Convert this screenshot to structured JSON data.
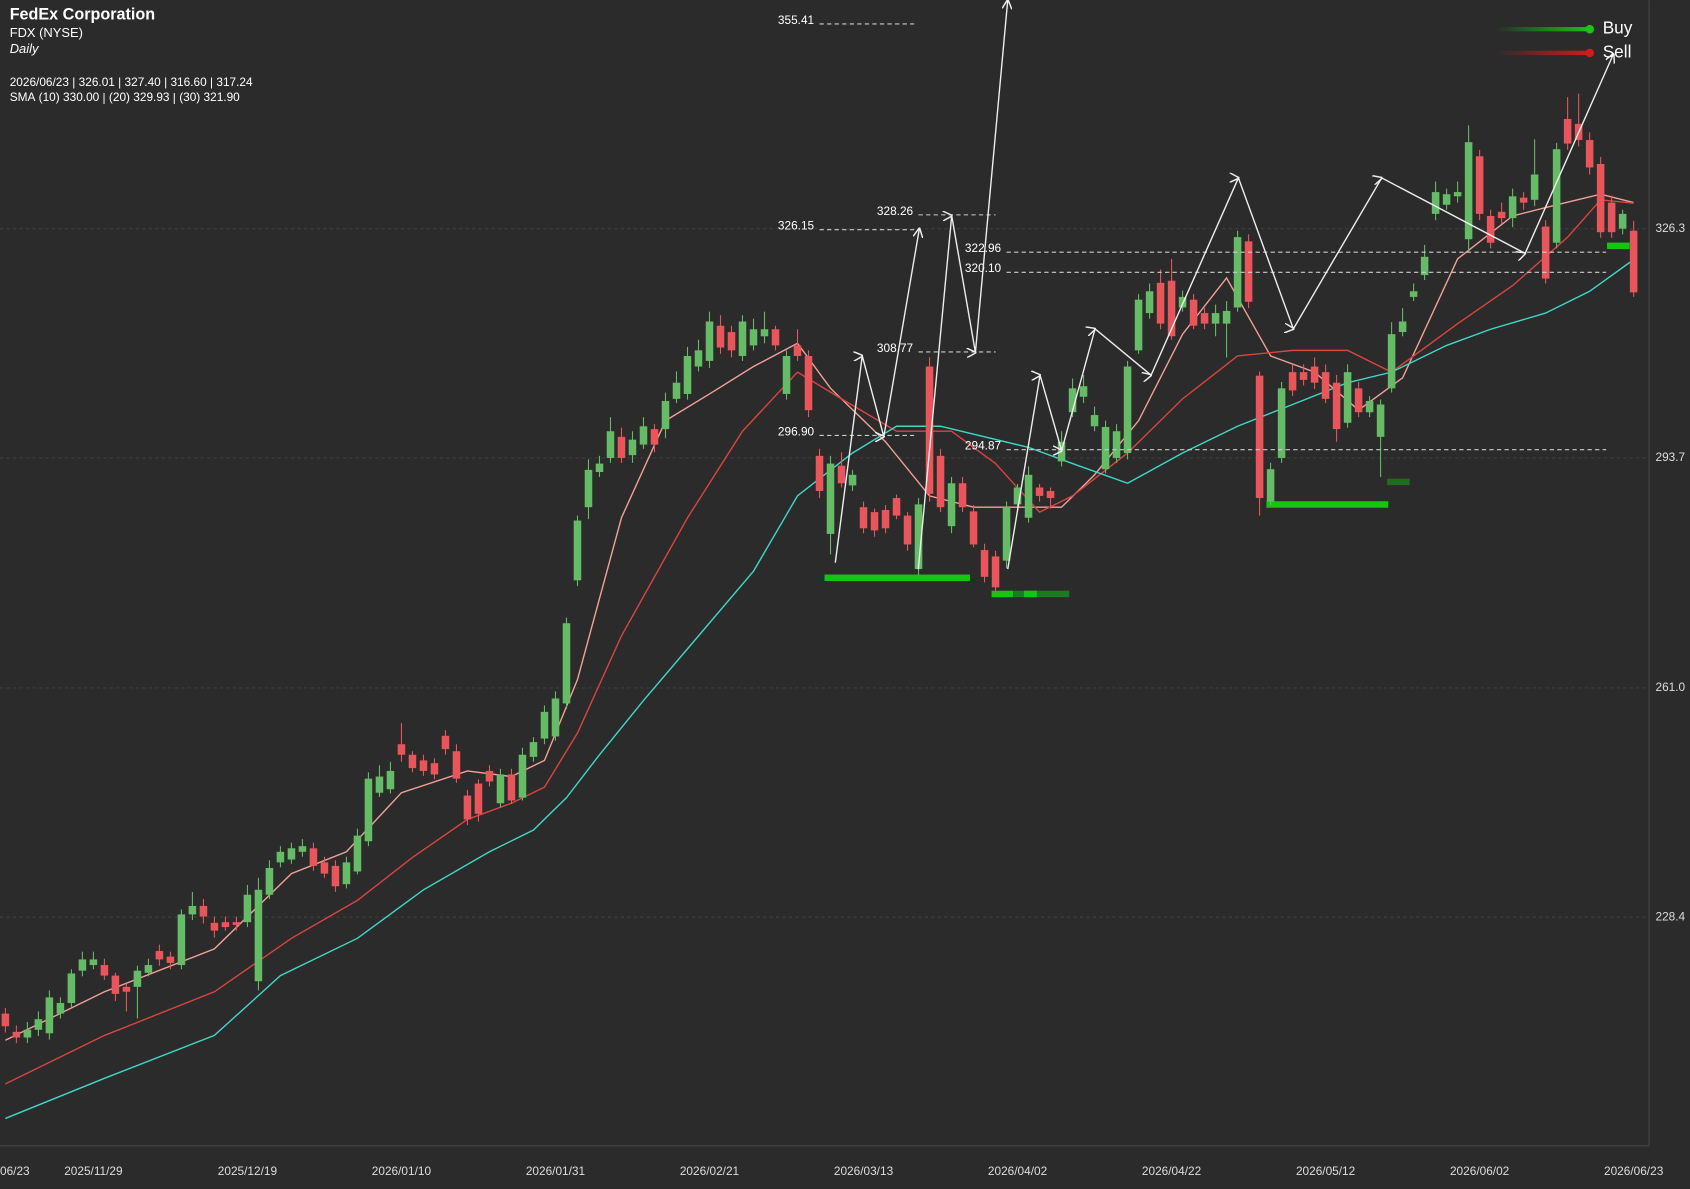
{
  "chart_data": {
    "type": "candlestick",
    "title": "FedEx Corporation",
    "subtitle": "FDX (NYSE)",
    "interval": "Daily",
    "up_color": "#66bb66",
    "down_color": "#e8555b",
    "grid": true,
    "open": [
      214.7,
      212.1,
      211.3,
      212.4,
      211.9,
      214.7,
      216.2,
      220.8,
      221.6,
      221.6,
      220.1,
      218.5,
      218.5,
      220.5,
      223.6,
      222.8,
      221.6,
      228.8,
      230.0,
      227.6,
      227.7,
      227.7,
      227.7,
      219.3,
      231.6,
      236.2,
      236.6,
      237.7,
      238.2,
      236.2,
      235.7,
      233.1,
      234.9,
      239.2,
      246.1,
      246.6,
      253.0,
      251.5,
      250.7,
      250.3,
      254.2,
      252.0,
      245.7,
      247.4,
      249.2,
      244.6,
      248.7,
      245.4,
      251.2,
      253.8,
      254.1,
      258.8,
      276.3,
      286.7,
      291.7,
      293.7,
      296.7,
      294.1,
      295.6,
      297.8,
      297.8,
      302.1,
      302.8,
      306.7,
      307.5,
      312.5,
      311.6,
      308.2,
      309.7,
      311.0,
      312.0,
      302.8,
      309.7,
      308.2,
      294.0,
      282.9,
      292.6,
      289.8,
      286.7,
      286.0,
      286.3,
      288.0,
      285.5,
      277.9,
      306.7,
      294.0,
      284.0,
      290.1,
      286.1,
      280.6,
      279.7,
      279.1,
      287.1,
      285.2,
      289.5,
      289.0,
      293.2,
      300.2,
      302.4,
      298.2,
      292.1,
      293.7,
      294.4,
      309.0,
      314.3,
      318.6,
      318.9,
      315.1,
      316.2,
      314.3,
      312.8,
      312.8,
      315.1,
      324.5,
      305.4,
      287.5,
      293.7,
      305.9,
      305.9,
      306.7,
      305.9,
      304.4,
      298.7,
      303.6,
      300.2,
      296.7,
      303.6,
      311.6,
      316.6,
      319.7,
      328.4,
      329.7,
      330.9,
      324.8,
      336.6,
      328.1,
      328.7,
      327.8,
      330.7,
      330.4,
      326.6,
      324.3,
      341.9,
      341.2,
      338.9,
      335.5,
      330.0,
      326.3,
      326.01
    ],
    "high": [
      215.5,
      213,
      213.5,
      215,
      218,
      217,
      221,
      223.5,
      223.5,
      222.5,
      220.5,
      219,
      221.5,
      222.5,
      224.5,
      223.5,
      229.5,
      232,
      231,
      228.5,
      228.5,
      228.5,
      233,
      234,
      236.5,
      238.5,
      239,
      239.5,
      239,
      237,
      236.5,
      237,
      241,
      249,
      250,
      250.5,
      256,
      252,
      251.5,
      251,
      255,
      253,
      246.5,
      248,
      250,
      249.5,
      249.5,
      252.5,
      254,
      258.5,
      260.5,
      271,
      285.5,
      293.5,
      294,
      299.5,
      298,
      297.5,
      299.5,
      298.5,
      303,
      306,
      309.5,
      310.5,
      314.5,
      314,
      312.5,
      314,
      313.5,
      314.5,
      312.5,
      309,
      312,
      309,
      295,
      294,
      294.5,
      292,
      287.5,
      286.5,
      287,
      288.5,
      286,
      288,
      308,
      295,
      291,
      291,
      287,
      281.5,
      280.5,
      287.5,
      290,
      292.5,
      290,
      289.5,
      297.5,
      305,
      305.5,
      301,
      299,
      298.5,
      307.5,
      317,
      318.5,
      320.5,
      322,
      317.5,
      317,
      315,
      315.5,
      316,
      326,
      325.5,
      306,
      293,
      304.5,
      307,
      307,
      308,
      307,
      305.5,
      307,
      304.5,
      302.5,
      302,
      313,
      315,
      318.5,
      324,
      333,
      332,
      333,
      341,
      337.5,
      329,
      330,
      332,
      331.5,
      339,
      327.5,
      338.5,
      345,
      345.5,
      340,
      336.5,
      331,
      329,
      327.4
    ],
    "low": [
      212.0,
      210.5,
      210.5,
      211.5,
      211,
      214,
      215.5,
      220,
      221,
      219.5,
      216.5,
      215,
      214,
      220,
      221.5,
      221,
      221,
      228,
      227.5,
      225.5,
      226.5,
      226.5,
      227,
      218,
      231,
      235.5,
      236,
      237,
      235,
      234,
      232,
      232.5,
      234.5,
      238.5,
      245.5,
      246,
      250.5,
      249,
      248.5,
      248,
      251.5,
      247.5,
      241.5,
      242,
      247,
      244,
      244.5,
      245,
      250.5,
      253,
      253.5,
      258,
      275.5,
      285,
      291,
      293,
      293,
      293,
      295,
      294.5,
      296.5,
      301.5,
      302,
      306,
      306.5,
      308.5,
      308,
      307.5,
      309,
      310,
      309,
      302,
      307.5,
      299.5,
      288,
      280,
      289.5,
      289,
      283,
      282.5,
      283,
      285,
      280.5,
      277,
      287.5,
      286,
      283,
      286,
      281,
      276,
      274.5,
      278,
      286.5,
      284.5,
      287.5,
      286.5,
      292.5,
      299.5,
      301.5,
      297.5,
      291.5,
      293,
      293.5,
      308.5,
      313.5,
      312,
      310.5,
      314.5,
      312,
      312,
      311,
      308,
      314.5,
      315,
      285.5,
      287,
      293,
      302.5,
      304,
      303.5,
      301.5,
      296,
      298,
      299.5,
      299.5,
      291,
      303,
      311,
      316,
      319,
      327.5,
      329,
      330,
      323,
      327.5,
      323.5,
      327,
      326.5,
      329,
      329.5,
      318.5,
      323.5,
      337.5,
      338,
      334,
      325,
      325,
      325.5,
      316.6
    ],
    "close": [
      212.9,
      211.3,
      212.4,
      213.9,
      217.0,
      216.2,
      220.4,
      222.4,
      222.4,
      220.1,
      217.5,
      217.8,
      220.8,
      221.6,
      222.4,
      221.9,
      228.8,
      230.0,
      228.5,
      226.5,
      227.0,
      227.3,
      231.6,
      232.3,
      235.4,
      237.7,
      238.2,
      238.5,
      235.7,
      234.6,
      232.8,
      236.2,
      240.0,
      248.1,
      248.4,
      249.2,
      251.5,
      249.6,
      249.2,
      248.7,
      252.3,
      248.1,
      242.3,
      243.1,
      247.7,
      248.7,
      245.0,
      251.5,
      253.3,
      257.6,
      259.5,
      270.2,
      284.8,
      292.0,
      292.9,
      297.5,
      293.7,
      296.3,
      298.2,
      295.6,
      301.8,
      304.4,
      308.2,
      309.0,
      313.1,
      309.4,
      309.0,
      313.1,
      312.0,
      312.0,
      309.7,
      308.2,
      308.2,
      300.5,
      289.0,
      292.9,
      290.1,
      291.3,
      283.7,
      283.4,
      283.7,
      285.5,
      281.4,
      287.1,
      288.6,
      286.7,
      290.1,
      286.7,
      281.4,
      276.8,
      275.3,
      286.7,
      289.5,
      291.3,
      288.3,
      288.0,
      296.0,
      303.6,
      303.9,
      299.8,
      298.1,
      297.5,
      306.7,
      316.2,
      317.4,
      312.8,
      311.0,
      316.6,
      312.5,
      312.8,
      314.3,
      314.6,
      325.1,
      315.9,
      288.0,
      292.1,
      303.6,
      303.3,
      304.8,
      304.4,
      302.1,
      297.8,
      305.9,
      300.2,
      301.8,
      301.3,
      311.3,
      313.1,
      317.4,
      322.3,
      331.5,
      331.2,
      331.5,
      338.6,
      328.4,
      324.3,
      327.8,
      330.9,
      330.0,
      334.0,
      319.2,
      337.6,
      338.4,
      338.9,
      335.0,
      325.8,
      325.8,
      328.4,
      317.24
    ],
    "last_labels": {
      "open": "326.01",
      "high": "327.40",
      "low": "316.60",
      "close": "317.24"
    },
    "sma_label": "SMA",
    "sma": [
      {
        "name": "(10)",
        "color": "#f2a199",
        "last_label": "330.00",
        "x": [
          0,
          9,
          19,
          26,
          31,
          36,
          42,
          46,
          49,
          52,
          56,
          60,
          64,
          68,
          72,
          75,
          80,
          84,
          88,
          92,
          96,
          99,
          103,
          107,
          111,
          115,
          119,
          123,
          127,
          132,
          137,
          141,
          145,
          148
        ],
        "values": [
          210.9,
          217.8,
          223.9,
          234.6,
          237.7,
          246.1,
          249.2,
          248.4,
          250.7,
          262.2,
          285.2,
          299.0,
          302.8,
          306.7,
          310.0,
          303.6,
          296.0,
          288.3,
          286.7,
          286.7,
          286.7,
          291.3,
          299.0,
          311.3,
          319.3,
          308.2,
          305.9,
          300.5,
          305.1,
          322.0,
          328.1,
          329.7,
          331.2,
          330.0
        ]
      },
      {
        "name": "(20)",
        "color": "#d9453f",
        "last_label": "329.93",
        "x": [
          0,
          9,
          19,
          26,
          32,
          37,
          42,
          46,
          49,
          52,
          56,
          62,
          67,
          72,
          76,
          81,
          86,
          90,
          94,
          97,
          102,
          107,
          112,
          117,
          122,
          126,
          132,
          137,
          142,
          145,
          148
        ],
        "values": [
          204.7,
          211.6,
          217.8,
          225.4,
          230.8,
          236.9,
          242.3,
          244.6,
          246.9,
          254.6,
          268.4,
          285.2,
          297.5,
          305.9,
          302.1,
          297.5,
          297.5,
          292.9,
          286.0,
          288.3,
          294.4,
          302.1,
          308.2,
          309.0,
          309.0,
          305.9,
          312.8,
          318.2,
          325.1,
          330.4,
          329.93
        ]
      },
      {
        "name": "(30)",
        "color": "#3fd8c6",
        "last_label": "321.90",
        "x": [
          0,
          9,
          19,
          25,
          32,
          38,
          44,
          48,
          51,
          54,
          58,
          63,
          68,
          72,
          77,
          81,
          85,
          89,
          93,
          97,
          102,
          107,
          112,
          117,
          122,
          126,
          131,
          135,
          140,
          144,
          148
        ],
        "values": [
          199.8,
          205.5,
          211.6,
          220.1,
          225.4,
          232.3,
          237.7,
          240.8,
          245.4,
          251.5,
          259.2,
          268.4,
          277.6,
          288.3,
          294.4,
          298.2,
          298.2,
          296.7,
          295.2,
          292.9,
          290.1,
          294.4,
          298.2,
          301.3,
          304.4,
          305.9,
          309.7,
          312.0,
          314.3,
          317.4,
          321.9
        ]
      }
    ],
    "levels": [
      {
        "value": 355.41,
        "label": "355.41",
        "x": [
          74,
          82.6
        ]
      },
      {
        "value": 326.15,
        "label": "326.15",
        "x": [
          74,
          82.6
        ]
      },
      {
        "value": 296.9,
        "label": "296.90",
        "x": [
          74,
          82.6
        ]
      },
      {
        "value": 328.26,
        "label": "328.26",
        "x": [
          83,
          90
        ]
      },
      {
        "value": 308.77,
        "label": "308.77",
        "x": [
          83,
          90
        ]
      },
      {
        "value": 322.96,
        "label": "322.96",
        "x": [
          91,
          145.5
        ]
      },
      {
        "value": 320.1,
        "label": "320.10",
        "x": [
          91,
          145.5
        ]
      },
      {
        "value": 294.87,
        "label": "294.87",
        "x": [
          91,
          145.5
        ]
      }
    ],
    "legend": [
      {
        "name": "Buy",
        "color": "#16c416"
      },
      {
        "name": "Sell",
        "color": "#d11a1a"
      }
    ],
    "xlim": [
      -0.49,
      149.4
    ],
    "xticks": [
      {
        "value": -1,
        "label": "06/23"
      },
      {
        "value": 8,
        "label": "2025/11/29"
      },
      {
        "value": 22,
        "label": "2025/12/19"
      },
      {
        "value": 36,
        "label": "2026/01/10"
      },
      {
        "value": 50,
        "label": "2026/01/31"
      },
      {
        "value": 64,
        "label": "2026/02/21"
      },
      {
        "value": 78,
        "label": "2026/03/13"
      },
      {
        "value": 92,
        "label": "2026/04/02"
      },
      {
        "value": 106,
        "label": "2026/04/22"
      },
      {
        "value": 120,
        "label": "2026/05/12"
      },
      {
        "value": 134,
        "label": "2026/06/02"
      },
      {
        "value": 148,
        "label": "2026/06/23"
      }
    ],
    "ylim": [
      195.9,
      358.8
    ],
    "yticks": [
      228.4,
      {
        "value": 261,
        "label": "261.0"
      },
      293.7,
      326.3
    ]
  }
}
